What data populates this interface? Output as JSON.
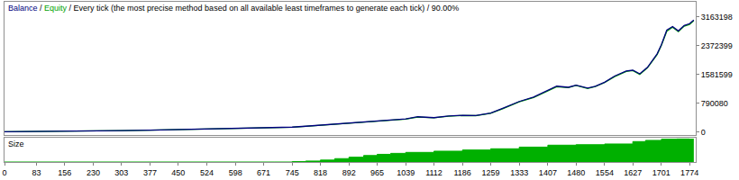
{
  "chart_data": [
    {
      "type": "line",
      "title": "Balance / Equity / Every tick (the most precise method based on all available least timeframes to generate each tick) / 90.00%",
      "x": [
        0,
        40,
        83,
        120,
        156,
        230,
        303,
        377,
        450,
        524,
        598,
        671,
        745,
        780,
        818,
        855,
        892,
        930,
        965,
        1000,
        1039,
        1070,
        1112,
        1150,
        1186,
        1220,
        1259,
        1290,
        1333,
        1370,
        1407,
        1430,
        1460,
        1480,
        1510,
        1530,
        1554,
        1580,
        1610,
        1627,
        1645,
        1665,
        1690,
        1701,
        1715,
        1730,
        1745,
        1760,
        1774,
        1785
      ],
      "series": [
        {
          "name": "Equity",
          "color": "#00a000",
          "values": [
            10000,
            12000,
            15000,
            18000,
            22000,
            30000,
            40000,
            52000,
            65000,
            80000,
            95000,
            110000,
            133000,
            158000,
            188000,
            218000,
            252000,
            276000,
            297000,
            326000,
            356000,
            412000,
            390000,
            436000,
            455000,
            450000,
            515000,
            640000,
            830000,
            950000,
            1140000,
            1245000,
            1220000,
            1280000,
            1195000,
            1250000,
            1360000,
            1525000,
            1665000,
            1690000,
            1585000,
            1765000,
            2130000,
            2380000,
            2770000,
            2880000,
            2760000,
            2910000,
            2960000,
            3060000
          ]
        },
        {
          "name": "Balance",
          "color": "#000080",
          "values": [
            10000,
            12000,
            15000,
            18000,
            22000,
            30000,
            40000,
            52000,
            65000,
            80000,
            95000,
            110000,
            135000,
            160000,
            190000,
            220000,
            255000,
            280000,
            300000,
            330000,
            360000,
            420000,
            395000,
            440000,
            460000,
            455000,
            520000,
            650000,
            840000,
            960000,
            1150000,
            1260000,
            1230000,
            1290000,
            1210000,
            1260000,
            1370000,
            1540000,
            1680000,
            1700000,
            1600000,
            1780000,
            2150000,
            2400000,
            2800000,
            2900000,
            2780000,
            2930000,
            2980000,
            3080000
          ]
        }
      ],
      "xlim": [
        0,
        1790
      ],
      "ylim": [
        -75000,
        3580000
      ],
      "yticks": [
        0,
        790080,
        1581599,
        2372399,
        3163198
      ],
      "grid": false,
      "tick_labels": "y"
    },
    {
      "type": "area",
      "title": "Size",
      "x": [
        0,
        700,
        745,
        780,
        818,
        855,
        892,
        930,
        965,
        1000,
        1039,
        1112,
        1186,
        1259,
        1333,
        1407,
        1480,
        1554,
        1627,
        1660,
        1701,
        1740,
        1774,
        1785
      ],
      "values": [
        0,
        0,
        0.02,
        0.04,
        0.08,
        0.14,
        0.2,
        0.27,
        0.32,
        0.36,
        0.4,
        0.45,
        0.5,
        0.55,
        0.62,
        0.7,
        0.72,
        0.75,
        0.85,
        0.9,
        0.95,
        0.96,
        0.95,
        0.95
      ],
      "color": "#00b000",
      "xlim": [
        0,
        1790
      ],
      "xticks": [
        0,
        83,
        156,
        230,
        303,
        377,
        450,
        524,
        598,
        671,
        745,
        818,
        892,
        965,
        1039,
        1112,
        1186,
        1259,
        1333,
        1407,
        1480,
        1554,
        1627,
        1701,
        1774
      ],
      "ylim": [
        0,
        1
      ],
      "yticks": [],
      "grid": false,
      "tick_labels": "x"
    }
  ]
}
